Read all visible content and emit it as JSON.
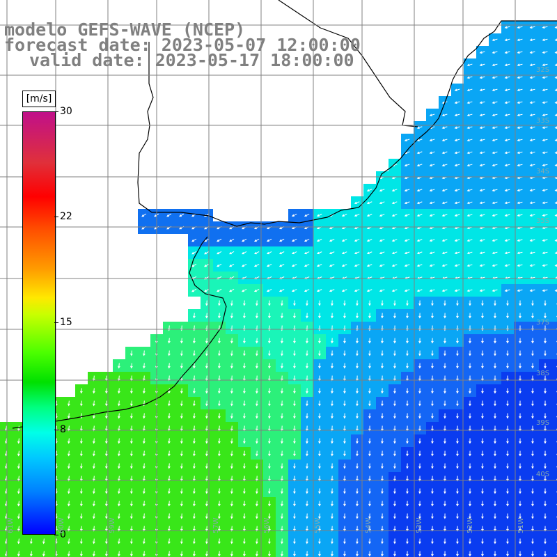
{
  "title": {
    "line1": "modelo GEFS-WAVE (NCEP)",
    "line2": "forecast date: 2023-05-07 12:00:00",
    "line3": "valid date: 2023-05-17 18:00:00"
  },
  "colorbar": {
    "unit": "[m/s]",
    "ticks": [
      "30",
      "22",
      "15",
      "8",
      "0"
    ],
    "range": [
      0,
      30
    ],
    "colors": [
      "#0000ff",
      "#0080ff",
      "#00c8ff",
      "#00ffe8",
      "#00ff80",
      "#00e000",
      "#4cff00",
      "#c8ff00",
      "#ffe800",
      "#ff9a00",
      "#ff5000",
      "#ff0000",
      "#e0303a",
      "#c0108a"
    ]
  },
  "lat_labels": [
    "32S",
    "33S",
    "34S",
    "35S",
    "37S",
    "38S",
    "39S",
    "40S"
  ],
  "lon_labels": [
    "61W",
    "60W",
    "59W",
    "57W",
    "56W",
    "55W",
    "54W",
    "53W",
    "52W",
    "51W"
  ],
  "colors": {
    "land": "#ffffff",
    "coast": "#000000",
    "grid": "#808080",
    "arrow": "#ffffff"
  }
}
